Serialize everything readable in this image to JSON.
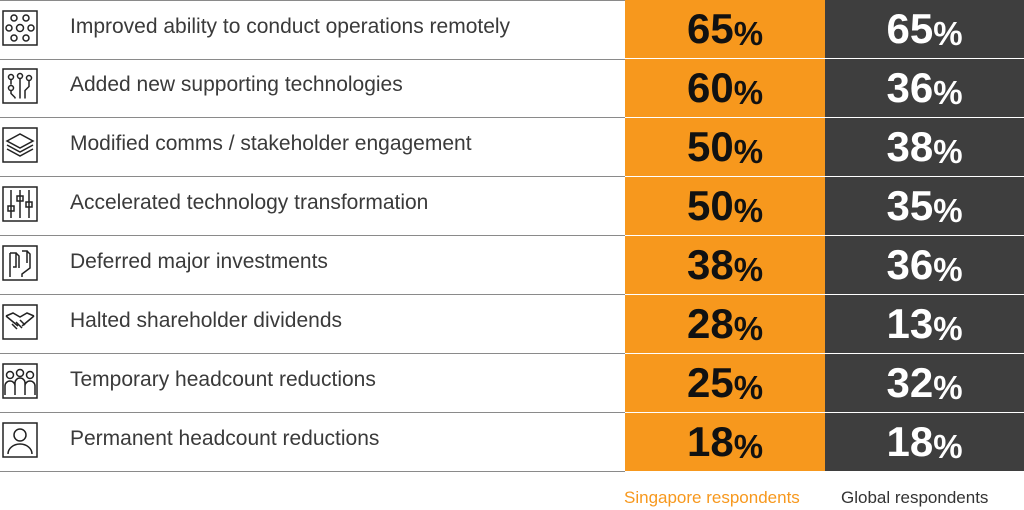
{
  "chart_data": {
    "type": "table",
    "categories": [
      "Improved ability to conduct operations remotely",
      "Added new supporting technologies",
      "Modified comms / stakeholder engagement",
      "Accelerated technology transformation",
      "Deferred major investments",
      "Halted shareholder dividends",
      "Temporary headcount reductions",
      "Permanent headcount reductions"
    ],
    "series": [
      {
        "name": "Singapore respondents",
        "values": [
          65,
          60,
          50,
          50,
          38,
          28,
          25,
          18
        ],
        "color": "#f7981d"
      },
      {
        "name": "Global respondents",
        "values": [
          65,
          36,
          38,
          35,
          36,
          13,
          32,
          18
        ],
        "color": "#3e3e3e"
      }
    ],
    "unit": "%",
    "icons": [
      "network-nodes-icon",
      "circuit-icon",
      "layers-icon",
      "sliders-icon",
      "documents-icon",
      "handshake-icon",
      "group-people-icon",
      "person-icon"
    ]
  }
}
